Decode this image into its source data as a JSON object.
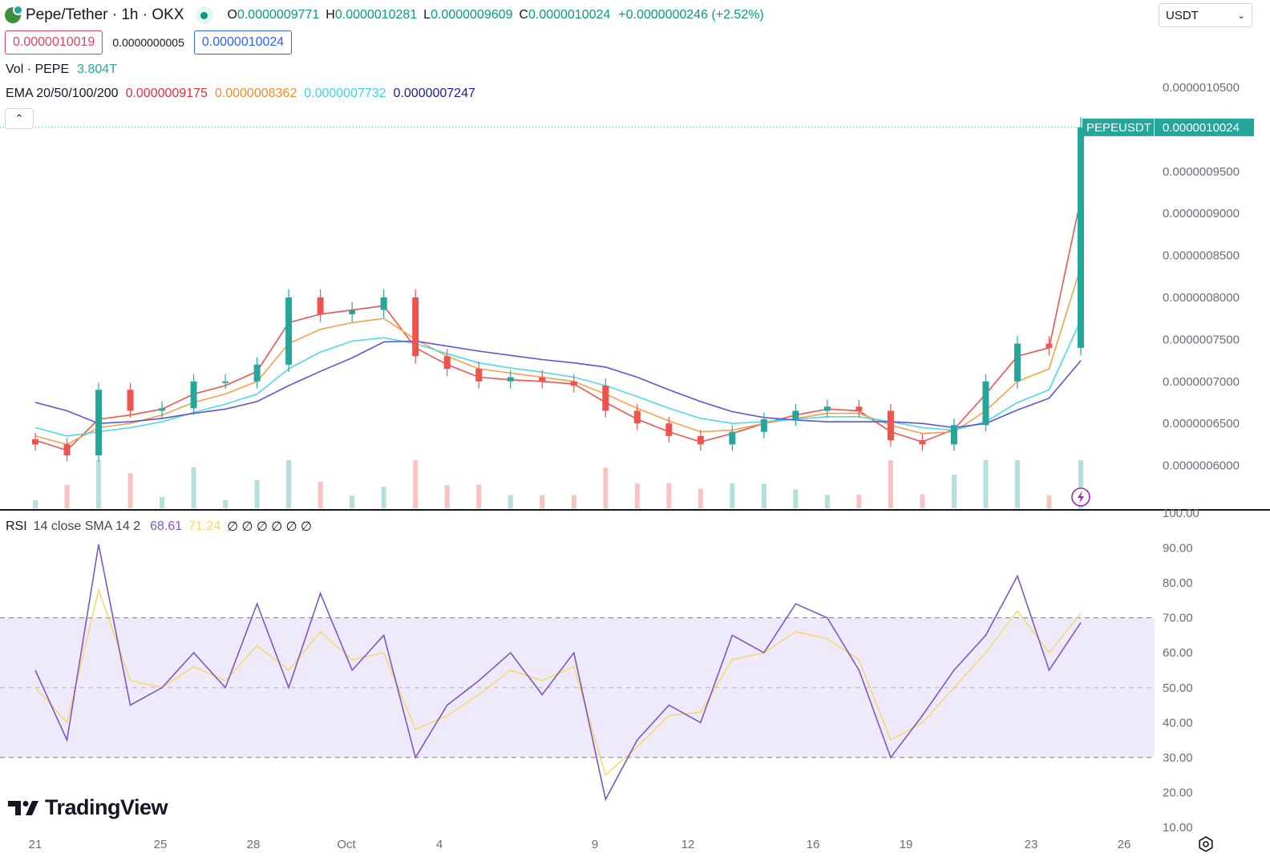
{
  "header": {
    "symbol_title": "Pepe/Tether · 1h · OKX",
    "ohlc": {
      "o_label": "O",
      "o_value": "0.0000009771",
      "h_label": "H",
      "h_value": "0.0000010281",
      "l_label": "L",
      "l_value": "0.0000009609",
      "c_label": "C",
      "c_value": "0.0000010024",
      "change": "+0.0000000246 (+2.52%)"
    },
    "currency_select": "USDT",
    "sell_price": "0.0000010019",
    "spread": "0.0000000005",
    "buy_price": "0.0000010024"
  },
  "volume_legend": {
    "label": "Vol · PEPE",
    "value": "3.804T"
  },
  "ema_legend": {
    "label": "EMA 20/50/100/200",
    "ema20": "0.0000009175",
    "ema50": "0.0000008362",
    "ema100": "0.0000007732",
    "ema200": "0.0000007247"
  },
  "price_tag": {
    "symbol": "PEPEUSDT",
    "price": "0.0000010024"
  },
  "rsi_legend": {
    "label": "RSI",
    "params": "14 close SMA 14 2",
    "rsi": "68.61",
    "sma": "71.24",
    "empty_values": "∅ ∅ ∅ ∅ ∅ ∅"
  },
  "branding": {
    "name": "TradingView"
  },
  "colors": {
    "up": "#26a69a",
    "down": "#ef5350",
    "ema20": "#ef5350",
    "ema50": "#f7a04b",
    "ema100": "#4dd9e6",
    "ema200": "#5b55d6",
    "rsi": "#7e57c2",
    "rsi_sma": "#f5d86a",
    "rsi_band": "#efeafb",
    "tag_bg": "#26a69a"
  },
  "chart_data": [
    {
      "type": "line",
      "title": "Pepe/Tether · 1h · OKX",
      "x_ticks": [
        "21",
        "25",
        "28",
        "Oct",
        "4",
        "9",
        "12",
        "16",
        "19",
        "23",
        "26"
      ],
      "y_ticks": [
        "0.0000006000",
        "0.0000006500",
        "0.0000007000",
        "0.0000007500",
        "0.0000008000",
        "0.0000008500",
        "0.0000009000",
        "0.0000009500",
        "0.0000010500"
      ],
      "ylim": [
        5.7e-07,
        1.07e-06
      ],
      "x": [
        "21",
        "22",
        "23",
        "24",
        "25",
        "26",
        "27",
        "28",
        "29",
        "30",
        "Oct",
        "2",
        "3",
        "4",
        "5",
        "6",
        "7",
        "8",
        "9",
        "10",
        "11",
        "12",
        "13",
        "14",
        "15",
        "16",
        "17",
        "18",
        "19",
        "20",
        "21",
        "22",
        "23",
        "24"
      ],
      "series": [
        {
          "name": "PEPEUSDT",
          "values": [
            6.25e-07,
            6.12e-07,
            6.9e-07,
            6.65e-07,
            6.68e-07,
            7e-07,
            7e-07,
            7.2e-07,
            8e-07,
            7.8e-07,
            7.85e-07,
            8e-07,
            7.3e-07,
            7.15e-07,
            7e-07,
            7.05e-07,
            7e-07,
            6.95e-07,
            6.65e-07,
            6.5e-07,
            6.35e-07,
            6.25e-07,
            6.4e-07,
            6.55e-07,
            6.65e-07,
            6.7e-07,
            6.65e-07,
            6.3e-07,
            6.25e-07,
            6.48e-07,
            7e-07,
            7.45e-07,
            7.4e-07,
            1.0024e-06
          ]
        },
        {
          "name": "EMA 20",
          "values": [
            6.3e-07,
            6.18e-07,
            6.55e-07,
            6.6e-07,
            6.67e-07,
            6.85e-07,
            6.95e-07,
            7.12e-07,
            7.7e-07,
            7.8e-07,
            7.85e-07,
            7.9e-07,
            7.4e-07,
            7.2e-07,
            7.05e-07,
            7.02e-07,
            7e-07,
            6.97e-07,
            6.75e-07,
            6.55e-07,
            6.4e-07,
            6.28e-07,
            6.38e-07,
            6.5e-07,
            6.6e-07,
            6.67e-07,
            6.65e-07,
            6.4e-07,
            6.28e-07,
            6.43e-07,
            6.85e-07,
            7.3e-07,
            7.4e-07,
            9.175e-07
          ]
        },
        {
          "name": "EMA 50",
          "values": [
            6.35e-07,
            6.25e-07,
            6.45e-07,
            6.5e-07,
            6.6e-07,
            6.75e-07,
            6.85e-07,
            7e-07,
            7.45e-07,
            7.62e-07,
            7.7e-07,
            7.75e-07,
            7.5e-07,
            7.3e-07,
            7.15e-07,
            7.1e-07,
            7.05e-07,
            7e-07,
            6.85e-07,
            6.68e-07,
            6.53e-07,
            6.4e-07,
            6.42e-07,
            6.5e-07,
            6.56e-07,
            6.62e-07,
            6.62e-07,
            6.48e-07,
            6.38e-07,
            6.4e-07,
            6.65e-07,
            7e-07,
            7.15e-07,
            8.362e-07
          ]
        },
        {
          "name": "EMA 100",
          "values": [
            6.45e-07,
            6.35e-07,
            6.4e-07,
            6.45e-07,
            6.52e-07,
            6.63e-07,
            6.73e-07,
            6.85e-07,
            7.15e-07,
            7.35e-07,
            7.48e-07,
            7.52e-07,
            7.45e-07,
            7.33e-07,
            7.22e-07,
            7.16e-07,
            7.11e-07,
            7.05e-07,
            6.95e-07,
            6.82e-07,
            6.68e-07,
            6.56e-07,
            6.5e-07,
            6.52e-07,
            6.55e-07,
            6.58e-07,
            6.58e-07,
            6.52e-07,
            6.45e-07,
            6.42e-07,
            6.52e-07,
            6.75e-07,
            6.9e-07,
            7.732e-07
          ]
        },
        {
          "name": "EMA 200",
          "values": [
            6.75e-07,
            6.65e-07,
            6.5e-07,
            6.52e-07,
            6.56e-07,
            6.62e-07,
            6.67e-07,
            6.76e-07,
            6.95e-07,
            7.12e-07,
            7.28e-07,
            7.47e-07,
            7.48e-07,
            7.42e-07,
            7.36e-07,
            7.31e-07,
            7.26e-07,
            7.22e-07,
            7.17e-07,
            7.05e-07,
            6.9e-07,
            6.76e-07,
            6.64e-07,
            6.57e-07,
            6.54e-07,
            6.52e-07,
            6.52e-07,
            6.52e-07,
            6.5e-07,
            6.45e-07,
            6.5e-07,
            6.66e-07,
            6.8e-07,
            7.247e-07
          ]
        }
      ]
    },
    {
      "type": "line",
      "title": "RSI 14 close SMA 14 2",
      "y_ticks": [
        "100.00",
        "90.00",
        "80.00",
        "70.00",
        "60.00",
        "50.00",
        "40.00",
        "30.00",
        "20.00",
        "10.00"
      ],
      "ylim": [
        10,
        100
      ],
      "bands": {
        "upper": 70,
        "middle": 50,
        "lower": 30
      },
      "x": [
        "21",
        "22",
        "23",
        "24",
        "25",
        "26",
        "27",
        "28",
        "29",
        "30",
        "Oct",
        "2",
        "3",
        "4",
        "5",
        "6",
        "7",
        "8",
        "9",
        "10",
        "11",
        "12",
        "13",
        "14",
        "15",
        "16",
        "17",
        "18",
        "19",
        "20",
        "21",
        "22",
        "23",
        "24"
      ],
      "series": [
        {
          "name": "RSI",
          "values": [
            55,
            35,
            91,
            45,
            50,
            60,
            50,
            74,
            50,
            77,
            55,
            65,
            30,
            45,
            52,
            60,
            48,
            60,
            18,
            35,
            45,
            40,
            65,
            60,
            74,
            70,
            55,
            30,
            42,
            55,
            65,
            82,
            55,
            68.61
          ]
        },
        {
          "name": "SMA",
          "values": [
            50,
            40,
            78,
            52,
            50,
            56,
            52,
            62,
            55,
            66,
            58,
            60,
            38,
            42,
            48,
            55,
            52,
            56,
            25,
            33,
            42,
            43,
            58,
            60,
            66,
            64,
            58,
            35,
            40,
            50,
            60,
            72,
            60,
            71.24
          ]
        }
      ]
    }
  ]
}
